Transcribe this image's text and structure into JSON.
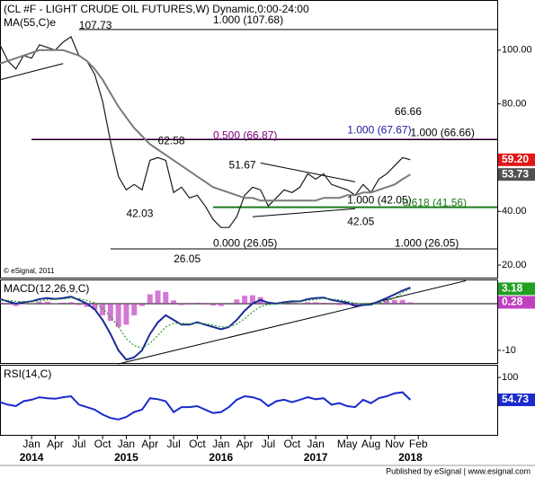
{
  "chart_data": [
    {
      "type": "line",
      "title": "(CL #F - LIGHT CRUDE OIL FUTURES,W) Dynamic,0:00-24:00",
      "x": [
        "2013-09",
        "2013-10",
        "2013-11",
        "2013-12",
        "2014-01",
        "2014-02",
        "2014-03",
        "2014-04",
        "2014-05",
        "2014-06",
        "2014-07",
        "2014-08",
        "2014-09",
        "2014-10",
        "2014-11",
        "2014-12",
        "2015-01",
        "2015-02",
        "2015-03",
        "2015-04",
        "2015-05",
        "2015-06",
        "2015-07",
        "2015-08",
        "2015-09",
        "2015-10",
        "2015-11",
        "2015-12",
        "2016-01",
        "2016-02",
        "2016-03",
        "2016-04",
        "2016-05",
        "2016-06",
        "2016-07",
        "2016-08",
        "2016-09",
        "2016-10",
        "2016-11",
        "2016-12",
        "2017-01",
        "2017-02",
        "2017-03",
        "2017-04",
        "2017-05",
        "2017-06",
        "2017-07",
        "2017-08",
        "2017-09",
        "2017-10",
        "2017-11",
        "2017-12",
        "2018-01"
      ],
      "xlim": [
        "2013-09",
        "2018-12"
      ],
      "ylim": [
        15,
        118
      ],
      "yticks": [
        {
          "value": 100,
          "label": "100.00"
        },
        {
          "value": 80,
          "label": "80.00"
        },
        {
          "value": 40,
          "label": "40.00"
        },
        {
          "value": 20,
          "label": "20.00"
        }
      ],
      "series": [
        {
          "color": "#1a1a1a",
          "label_color": "#e01818",
          "values": [
            102,
            96,
            93,
            98,
            97,
            102,
            101,
            100,
            103,
            105,
            98,
            96,
            91,
            81,
            66,
            53,
            48,
            50,
            48,
            59,
            60,
            59,
            47,
            49,
            45,
            46,
            42,
            37,
            34,
            34,
            38,
            46,
            49,
            48,
            42,
            45,
            48,
            47,
            49,
            54,
            52,
            54,
            50,
            49,
            48,
            46,
            50,
            47,
            52,
            54,
            57,
            60,
            59.2
          ],
          "value_labels": [
            null,
            null,
            null,
            null,
            null,
            null,
            null,
            null,
            null,
            null,
            null,
            null,
            null,
            null,
            null,
            null,
            null,
            null,
            null,
            null,
            null,
            null,
            null,
            null,
            null,
            null,
            null,
            null,
            null,
            null,
            null,
            null,
            null,
            null,
            null,
            null,
            null,
            null,
            null,
            null,
            null,
            null,
            null,
            null,
            null,
            null,
            null,
            null,
            null,
            null,
            null,
            null,
            "59.20"
          ]
        },
        {
          "name": "MA(55,C)e",
          "color": "#7a7a7a",
          "label_color": "#505050",
          "values": [
            95,
            96,
            97,
            98,
            99,
            100,
            100,
            100,
            100,
            99,
            98,
            96,
            93,
            89,
            84,
            79,
            75,
            71,
            68,
            65,
            63,
            61,
            59,
            57,
            55,
            53,
            51,
            49,
            48,
            47,
            46,
            45,
            45,
            44,
            44,
            44,
            44,
            44,
            44,
            44,
            44,
            45,
            45,
            45,
            46,
            46,
            47,
            47,
            48,
            49,
            50,
            52,
            53.73
          ]
        }
      ],
      "levels": [
        {
          "value": 107.68,
          "from": "2014-07",
          "color": "#000000"
        },
        {
          "value": 66.87,
          "from": "2014-01",
          "color": "#800080"
        },
        {
          "value": 66.66,
          "from": "2014-01",
          "color": "#000000"
        },
        {
          "value": 41.56,
          "from": "2015-12",
          "color": "#1a7a1a"
        },
        {
          "value": 26.05,
          "from": "2014-11",
          "color": "#000000"
        }
      ],
      "trendlines": [
        {
          "x": [
            "2013-09",
            "2014-05"
          ],
          "y": [
            89,
            95
          ]
        },
        {
          "x": [
            "2016-06",
            "2017-06"
          ],
          "y": [
            58,
            51
          ]
        },
        {
          "x": [
            "2016-05",
            "2017-06"
          ],
          "y": [
            38,
            41
          ]
        }
      ],
      "annotations": [
        {
          "text": "107.73",
          "x": "2014-07",
          "y": 109,
          "color": "#000000"
        },
        {
          "text": "1.000 (107.68)",
          "x": "2015-12",
          "y": 111,
          "color": "#000000"
        },
        {
          "text": "62.58",
          "x": "2015-05",
          "y": 66,
          "color": "#000000"
        },
        {
          "text": "0.500 (66.87)",
          "x": "2015-12",
          "y": 68,
          "color": "#800080"
        },
        {
          "text": "1.000 (67.67)",
          "x": "2017-05",
          "y": 70,
          "color": "#1a1aa0"
        },
        {
          "text": "66.66",
          "x": "2017-11",
          "y": 77,
          "color": "#000000"
        },
        {
          "text": "1.000 (66.66)",
          "x": "2018-01",
          "y": 69,
          "color": "#000000"
        },
        {
          "text": "51.67",
          "x": "2016-02",
          "y": 57,
          "color": "#000000"
        },
        {
          "text": "42.03",
          "x": "2015-01",
          "y": 39,
          "color": "#000000"
        },
        {
          "text": "1.000 (42.05)",
          "x": "2017-05",
          "y": 44,
          "color": "#000000"
        },
        {
          "text": "0.618 (41.56)",
          "x": "2017-12",
          "y": 43,
          "color": "#1a7a1a"
        },
        {
          "text": "42.05",
          "x": "2017-05",
          "y": 36,
          "color": "#000000"
        },
        {
          "text": "0.000 (26.05)",
          "x": "2015-12",
          "y": 28,
          "color": "#000000"
        },
        {
          "text": "1.000 (26.05)",
          "x": "2017-11",
          "y": 28,
          "color": "#000000"
        },
        {
          "text": "26.05",
          "x": "2015-07",
          "y": 22,
          "color": "#000000"
        }
      ],
      "watermark": "© eSignal, 2011"
    },
    {
      "type": "line",
      "title": "MACD(12,26,9,C)",
      "x": [
        "2013-09",
        "2013-10",
        "2013-11",
        "2013-12",
        "2014-01",
        "2014-02",
        "2014-03",
        "2014-04",
        "2014-05",
        "2014-06",
        "2014-07",
        "2014-08",
        "2014-09",
        "2014-10",
        "2014-11",
        "2014-12",
        "2015-01",
        "2015-02",
        "2015-03",
        "2015-04",
        "2015-05",
        "2015-06",
        "2015-07",
        "2015-08",
        "2015-09",
        "2015-10",
        "2015-11",
        "2015-12",
        "2016-01",
        "2016-02",
        "2016-03",
        "2016-04",
        "2016-05",
        "2016-06",
        "2016-07",
        "2016-08",
        "2016-09",
        "2016-10",
        "2016-11",
        "2016-12",
        "2017-01",
        "2017-02",
        "2017-03",
        "2017-04",
        "2017-05",
        "2017-06",
        "2017-07",
        "2017-08",
        "2017-09",
        "2017-10",
        "2017-11",
        "2017-12",
        "2018-01"
      ],
      "xlim": [
        "2013-09",
        "2018-12"
      ],
      "ylim": [
        -12.9,
        4.8
      ],
      "yticks": [
        -10
      ],
      "series": [
        {
          "style": "bar",
          "color": "#c040c0",
          "label_color": "#c040c0",
          "values": [
            0.2,
            -0.2,
            -0.5,
            -0.1,
            0.1,
            0.4,
            0.4,
            0.1,
            0.2,
            0.3,
            -0.3,
            -0.7,
            -1.3,
            -2.5,
            -3.7,
            -5.0,
            -4.5,
            -2.5,
            -0.5,
            2.0,
            2.8,
            2.5,
            0.7,
            -0.3,
            -0.2,
            0.2,
            -0.2,
            -0.4,
            -0.5,
            0,
            0.9,
            1.7,
            1.8,
            1.4,
            0.4,
            0.1,
            0.2,
            0.2,
            0.1,
            0.3,
            0.3,
            0.2,
            -0.2,
            -0.3,
            -0.3,
            -0.6,
            -0.2,
            0,
            0.4,
            0.6,
            0.8,
            0.8,
            0.28
          ]
        },
        {
          "color": "#1a2a9a",
          "values": [
            1.0,
            0.5,
            0.0,
            0.3,
            0.5,
            1.0,
            1.2,
            1.0,
            1.2,
            1.5,
            0.8,
            0,
            -1.2,
            -3.5,
            -6.5,
            -10,
            -12,
            -11.5,
            -10,
            -6.5,
            -4,
            -2.5,
            -3.5,
            -4.5,
            -4.5,
            -4,
            -4.5,
            -5,
            -5.5,
            -5,
            -3.5,
            -1.5,
            0,
            0.8,
            0.2,
            0,
            0.3,
            0.5,
            0.5,
            1.0,
            1.2,
            1.3,
            0.8,
            0.5,
            0.2,
            -0.5,
            -0.3,
            -0.2,
            0.5,
            1.2,
            2.0,
            2.8,
            3.46
          ]
        },
        {
          "style": "dotted",
          "color": "#2a9a2a",
          "label_color": "#22a022",
          "values": [
            0.8,
            0.7,
            0.5,
            0.4,
            0.4,
            0.6,
            0.8,
            0.9,
            1.0,
            1.2,
            1.1,
            0.7,
            0.1,
            -1.0,
            -2.8,
            -5.0,
            -7.5,
            -9.0,
            -9.5,
            -8.5,
            -6.8,
            -5.0,
            -4.2,
            -4.2,
            -4.3,
            -4.2,
            -4.3,
            -4.6,
            -5.0,
            -5.0,
            -4.4,
            -3.2,
            -1.8,
            -0.6,
            -0.2,
            -0.1,
            0.1,
            0.3,
            0.4,
            0.7,
            0.9,
            1.1,
            1.0,
            0.8,
            0.5,
            0.1,
            -0.1,
            -0.2,
            0.1,
            0.6,
            1.2,
            2.4,
            3.18
          ]
        }
      ],
      "trendlines": [
        {
          "x": [
            "2014-12",
            "2018-08"
          ],
          "y": [
            -12.9,
            4.9
          ]
        }
      ]
    },
    {
      "type": "line",
      "title": "RSI(14,C)",
      "x": [
        "2013-09",
        "2013-10",
        "2013-11",
        "2013-12",
        "2014-01",
        "2014-02",
        "2014-03",
        "2014-04",
        "2014-05",
        "2014-06",
        "2014-07",
        "2014-08",
        "2014-09",
        "2014-10",
        "2014-11",
        "2014-12",
        "2015-01",
        "2015-02",
        "2015-03",
        "2015-04",
        "2015-05",
        "2015-06",
        "2015-07",
        "2015-08",
        "2015-09",
        "2015-10",
        "2015-11",
        "2015-12",
        "2016-01",
        "2016-02",
        "2016-03",
        "2016-04",
        "2016-05",
        "2016-06",
        "2016-07",
        "2016-08",
        "2016-09",
        "2016-10",
        "2016-11",
        "2016-12",
        "2017-01",
        "2017-02",
        "2017-03",
        "2017-04",
        "2017-05",
        "2017-06",
        "2017-07",
        "2017-08",
        "2017-09",
        "2017-10",
        "2017-11",
        "2017-12",
        "2018-01"
      ],
      "xlim": [
        "2013-09",
        "2018-12"
      ],
      "ylim": [
        -18,
        122
      ],
      "yticks": [
        100
      ],
      "series": [
        {
          "color": "#1a2acc",
          "label_color": "#1a2acc",
          "values": [
            50,
            45,
            42,
            52,
            55,
            60,
            58,
            57,
            60,
            62,
            45,
            40,
            35,
            25,
            18,
            15,
            20,
            30,
            35,
            58,
            56,
            52,
            30,
            40,
            40,
            42,
            35,
            28,
            30,
            40,
            55,
            62,
            60,
            55,
            42,
            52,
            55,
            50,
            55,
            60,
            56,
            58,
            45,
            48,
            42,
            40,
            55,
            48,
            58,
            62,
            68,
            70,
            54.73
          ]
        }
      ],
      "xticks": [
        {
          "value": "2014-01",
          "label": "Jan"
        },
        {
          "value": "2014-04",
          "label": "Apr"
        },
        {
          "value": "2014-07",
          "label": "Jul"
        },
        {
          "value": "2014-10",
          "label": "Oct"
        },
        {
          "value": "2015-01",
          "label": "Jan"
        },
        {
          "value": "2015-04",
          "label": "Apr"
        },
        {
          "value": "2015-07",
          "label": "Jul"
        },
        {
          "value": "2015-10",
          "label": "Oct"
        },
        {
          "value": "2016-01",
          "label": "Jan"
        },
        {
          "value": "2016-04",
          "label": "Apr"
        },
        {
          "value": "2016-07",
          "label": "Jul"
        },
        {
          "value": "2016-10",
          "label": "Oct"
        },
        {
          "value": "2017-01",
          "label": "Jan"
        },
        {
          "value": "2017-05",
          "label": "May"
        },
        {
          "value": "2017-08",
          "label": "Aug"
        },
        {
          "value": "2017-11",
          "label": "Nov"
        },
        {
          "value": "2018-02",
          "label": "Feb"
        }
      ],
      "year_labels": [
        {
          "value": "2014-01",
          "label": "2014"
        },
        {
          "value": "2015-01",
          "label": "2015"
        },
        {
          "value": "2016-01",
          "label": "2016"
        },
        {
          "value": "2017-01",
          "label": "2017"
        },
        {
          "value": "2018-01",
          "label": "2018"
        }
      ]
    }
  ],
  "footer": "Published by eSignal | www.esignal.com"
}
